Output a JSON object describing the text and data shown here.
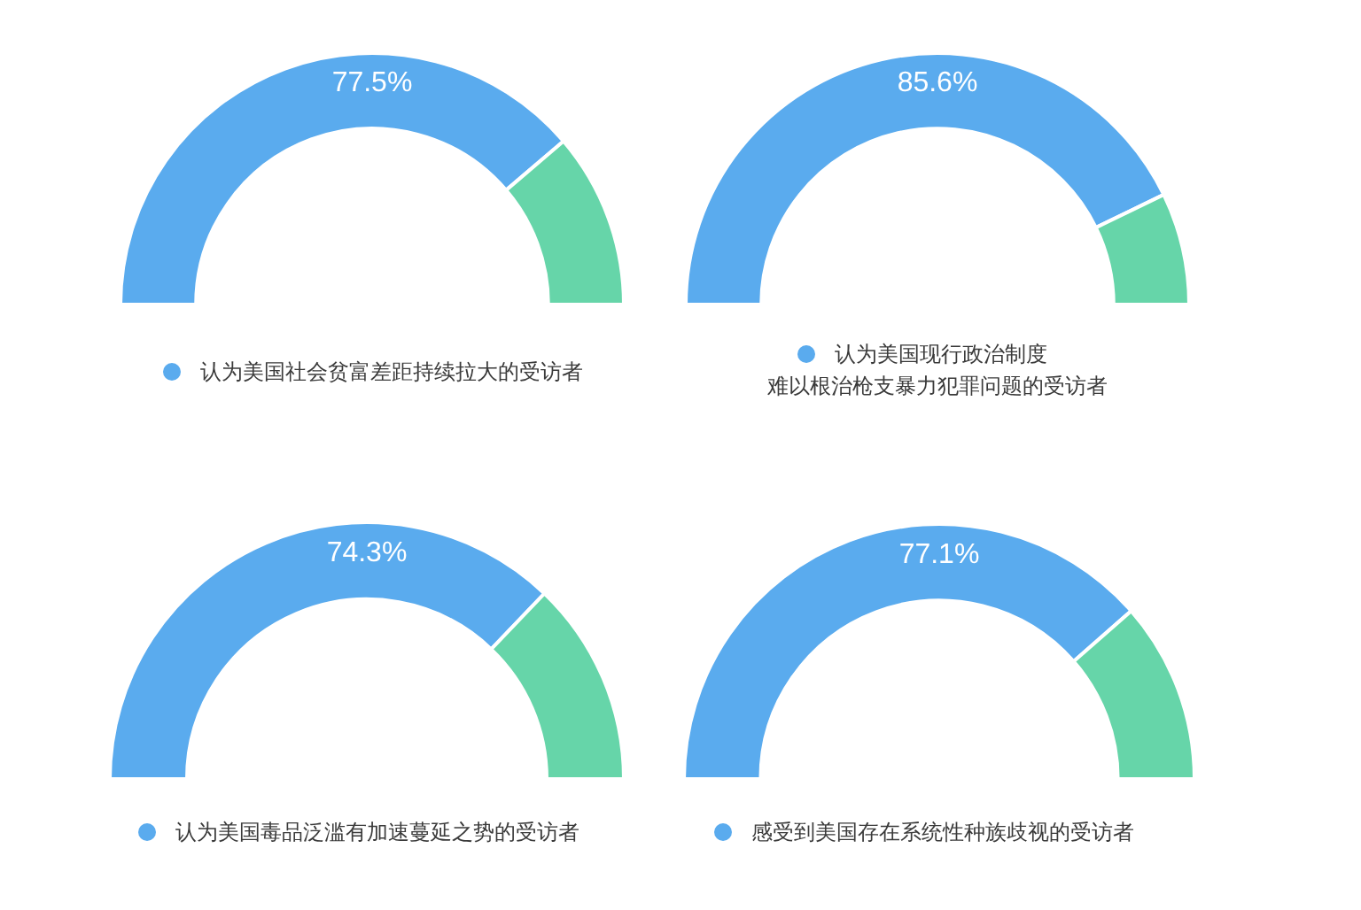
{
  "chart_data": [
    {
      "type": "donut",
      "categories": [
        "认为美国社会贫富差距持续拉大的受访者",
        null
      ],
      "values": [
        77.5,
        22.5
      ],
      "colors": [
        "#5aabee",
        "#66d5a9"
      ],
      "value_labels": [
        "77.5%",
        null
      ],
      "legend": "bottom"
    },
    {
      "type": "donut",
      "categories": [
        "认为美国现行政治制度难以根治枪支暴力犯罪问题的受访者",
        null
      ],
      "values": [
        85.6,
        14.4
      ],
      "colors": [
        "#5aabee",
        "#66d5a9"
      ],
      "value_labels": [
        "85.6%",
        null
      ],
      "legend": "bottom"
    },
    {
      "type": "donut",
      "categories": [
        "认为美国毒品泛滥有加速蔓延之势的受访者",
        null
      ],
      "values": [
        74.3,
        25.7
      ],
      "colors": [
        "#5aabee",
        "#66d5a9"
      ],
      "value_labels": [
        "74.3%",
        null
      ],
      "legend": "bottom"
    },
    {
      "type": "donut",
      "categories": [
        "感受到美国存在系统性种族歧视的受访者",
        null
      ],
      "values": [
        77.1,
        22.9
      ],
      "colors": [
        "#5aabee",
        "#66d5a9"
      ],
      "value_labels": [
        "77.1%",
        null
      ],
      "legend": "bottom"
    }
  ]
}
